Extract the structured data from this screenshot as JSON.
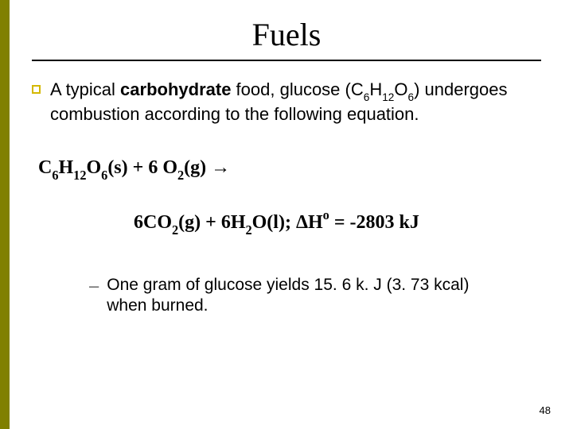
{
  "title": "Fuels",
  "body": {
    "pre": "A typical ",
    "bold": "carbohydrate",
    "mid": " food, glucose (C",
    "s1": "6",
    "h": "H",
    "s2": "12",
    "o": "O",
    "s3": "6",
    "post": ") undergoes combustion according to the following equation."
  },
  "eq1": {
    "a": "C",
    "a_s": "6",
    "b": "H",
    "b_s": "12",
    "c": "O",
    "c_s": "6",
    "d": "(s) + 6 O",
    "d_s": "2",
    "e": "(g) →"
  },
  "eq2": {
    "a": "6CO",
    "a_s": "2",
    "b": "(g) + 6H",
    "b_s": "2",
    "c": "O(l);    ΔH",
    "sup": "o",
    "d": " = -2803 kJ"
  },
  "sub_bullet": "One gram of glucose yields 15. 6 k. J (3. 73 kcal) when burned.",
  "page": "48",
  "colors": {
    "accent_border": "#808000",
    "bullet_border": "#d4b800",
    "text": "#000000",
    "background": "#ffffff"
  }
}
